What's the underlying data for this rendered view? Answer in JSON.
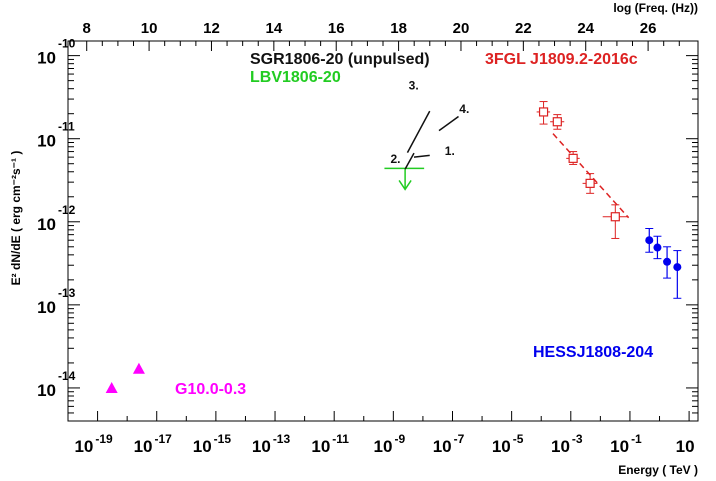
{
  "chart_data": {
    "type": "scatter",
    "xlabel": "Energy ( TeV )",
    "ylabel": "E² dN/dE ( erg cm⁻²s⁻¹ )",
    "top_xlabel": "log (Freq. (Hz))",
    "xscale": "log",
    "yscale": "log",
    "xlim": [
      1e-20,
      20
    ],
    "ylim": [
      4e-15,
      1.5e-10
    ],
    "top_xlim": [
      7.4,
      27.6
    ],
    "x_ticks": [
      {
        "value": 1e-19,
        "base": "10",
        "exp": "-19"
      },
      {
        "value": 1e-17,
        "base": "10",
        "exp": "-17"
      },
      {
        "value": 1e-15,
        "base": "10",
        "exp": "-15"
      },
      {
        "value": 1e-13,
        "base": "10",
        "exp": "-13"
      },
      {
        "value": 1e-11,
        "base": "10",
        "exp": "-11"
      },
      {
        "value": 1e-09,
        "base": "10",
        "exp": "-9"
      },
      {
        "value": 1e-07,
        "base": "10",
        "exp": "-7"
      },
      {
        "value": 1e-05,
        "base": "10",
        "exp": "-5"
      },
      {
        "value": 0.001,
        "base": "10",
        "exp": "-3"
      },
      {
        "value": 0.1,
        "base": "10",
        "exp": "-1"
      },
      {
        "value": 10,
        "base": "10",
        "exp": ""
      }
    ],
    "y_ticks": [
      {
        "value": 1e-10,
        "base": "10",
        "exp": "-10"
      },
      {
        "value": 1e-11,
        "base": "10",
        "exp": "-11"
      },
      {
        "value": 1e-12,
        "base": "10",
        "exp": "-12"
      },
      {
        "value": 1e-13,
        "base": "10",
        "exp": "-13"
      },
      {
        "value": 1e-14,
        "base": "10",
        "exp": "-14"
      }
    ],
    "top_ticks": [
      {
        "value": 8,
        "label": "8"
      },
      {
        "value": 10,
        "label": "10"
      },
      {
        "value": 12,
        "label": "12"
      },
      {
        "value": 14,
        "label": "14"
      },
      {
        "value": 16,
        "label": "16"
      },
      {
        "value": 18,
        "label": "18"
      },
      {
        "value": 20,
        "label": "20"
      },
      {
        "value": 22,
        "label": "22"
      },
      {
        "value": 24,
        "label": "24"
      },
      {
        "value": 26,
        "label": "26"
      }
    ],
    "series": [
      {
        "name": "HESSJ1808-204",
        "color": "#0000ee",
        "marker": "filled-circle",
        "points": [
          {
            "x": 0.45,
            "y": 6e-13,
            "ylo": 4.3e-13,
            "yhi": 8.3e-13
          },
          {
            "x": 0.85,
            "y": 4.9e-13,
            "ylo": 3.6e-13,
            "yhi": 6.7e-13
          },
          {
            "x": 1.8,
            "y": 3.3e-13,
            "ylo": 2.1e-13,
            "yhi": 5e-13
          },
          {
            "x": 4.0,
            "y": 2.85e-13,
            "ylo": 1.2e-13,
            "yhi": 4.5e-13
          }
        ]
      },
      {
        "name": "3FGL J1809.2-2016c",
        "color": "#dd2222",
        "marker": "open-square",
        "points": [
          {
            "x": 0.00012,
            "y": 2.1e-11,
            "ylo": 1.5e-11,
            "yhi": 2.8e-11,
            "xlo": 7e-05,
            "xhi": 0.0002
          },
          {
            "x": 0.00035,
            "y": 1.6e-11,
            "ylo": 1.3e-11,
            "yhi": 1.95e-11,
            "xlo": 0.0002,
            "xhi": 0.0006
          },
          {
            "x": 0.0012,
            "y": 5.8e-12,
            "ylo": 4.9e-12,
            "yhi": 7e-12,
            "xlo": 0.0007,
            "xhi": 0.002
          },
          {
            "x": 0.0045,
            "y": 2.9e-12,
            "ylo": 2.2e-12,
            "yhi": 3.8e-12,
            "xlo": 0.0025,
            "xhi": 0.008
          },
          {
            "x": 0.032,
            "y": 1.15e-12,
            "ylo": 6.3e-13,
            "yhi": 1.6e-12,
            "xlo": 0.012,
            "xhi": 0.09
          }
        ],
        "fit": {
          "x": [
            0.00025,
            0.09
          ],
          "y": [
            1.15e-11,
            1.12e-12
          ]
        }
      },
      {
        "name": "G10.0-0.3",
        "color": "#ff00ff",
        "marker": "filled-triangle",
        "points": [
          {
            "x": 3e-19,
            "y": 1e-14
          },
          {
            "x": 2.5e-18,
            "y": 1.7e-14
          }
        ]
      },
      {
        "name": "LBV1806-20",
        "color": "#22cc22",
        "marker": "upper-limit",
        "points": [
          {
            "x": 2.5e-09,
            "y": 4.4e-12,
            "ylo": 2.45e-12,
            "xlo": 5e-10,
            "xhi": 1.1e-08
          }
        ]
      },
      {
        "name": "SGR1806-20 (unpulsed)",
        "color": "#111111",
        "marker": "segments",
        "segments": [
          {
            "label": "1.",
            "x": [
              5e-09,
              1.7e-08
            ],
            "y": [
              6e-12,
              6.3e-12
            ],
            "lx": 5.5e-08,
            "ly": 6.4e-12
          },
          {
            "label": "2.",
            "x": [
              2.5e-09,
              5e-09
            ],
            "y": [
              4.3e-12,
              6.7e-12
            ],
            "lx": 8e-10,
            "ly": 5.1e-12
          },
          {
            "label": "3.",
            "x": [
              3e-09,
              1.7e-08
            ],
            "y": [
              6.8e-12,
              2.15e-11
            ],
            "lx": 3.3e-09,
            "ly": 3.9e-11
          },
          {
            "label": "4.",
            "x": [
              3.5e-08,
              1.6e-07
            ],
            "y": [
              1.25e-11,
              1.85e-11
            ],
            "lx": 1.7e-07,
            "ly": 2.05e-11
          }
        ]
      }
    ],
    "legend_labels": [
      {
        "text": "SGR1806-20 (unpulsed)",
        "color": "#111111",
        "position": "top-center"
      },
      {
        "text": "LBV1806-20",
        "color": "#22cc22",
        "position": "top-center"
      },
      {
        "text": "3FGL J1809.2-2016c",
        "color": "#dd2222",
        "position": "top-right"
      },
      {
        "text": "HESSJ1808-204",
        "color": "#0000ee",
        "position": "bottom-right"
      },
      {
        "text": "G10.0-0.3",
        "color": "#ff00ff",
        "position": "bottom-left"
      }
    ],
    "grid": false
  }
}
